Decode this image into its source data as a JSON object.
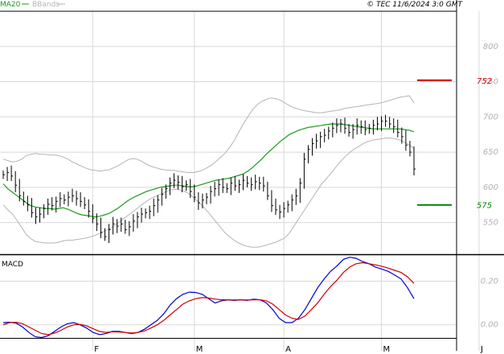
{
  "header": {
    "legend": [
      {
        "name": "MA20",
        "color": "#1a9a1a"
      },
      {
        "name": "BBands",
        "color": "#b4b4b4"
      }
    ],
    "copyright": "© TEC 11/6/2024 3:0 GMT"
  },
  "chart_data": [
    {
      "type": "line",
      "panel": "price",
      "ylim": [
        505,
        850
      ],
      "y_ticks": [
        {
          "label": "800",
          "value": 800
        },
        {
          "label": "750",
          "value": 750
        },
        {
          "label": "700",
          "value": 700
        },
        {
          "label": "650",
          "value": 650
        },
        {
          "label": "600",
          "value": 600
        },
        {
          "label": "550",
          "value": 550
        }
      ],
      "month_markers": [
        {
          "label": "F",
          "index": 22
        },
        {
          "label": "M",
          "index": 47
        },
        {
          "label": "A",
          "index": 69
        },
        {
          "label": "M",
          "index": 93
        },
        {
          "label": "J",
          "index": 117
        }
      ],
      "levels": [
        {
          "label": "752",
          "value": 752,
          "color": "#cc0000"
        },
        {
          "label": "575",
          "value": 575,
          "color": "#008000"
        }
      ],
      "colors": {
        "bars": "#000000",
        "ma20": "#1a9a1a",
        "bbands": "#b4b4b4",
        "grid": "#d8d8d8",
        "tick_text": "#b0b0b0"
      },
      "close": [
        618,
        621,
        616,
        603,
        588,
        580,
        575,
        564,
        558,
        562,
        570,
        576,
        574,
        580,
        584,
        582,
        586,
        588,
        584,
        580,
        575,
        566,
        556,
        548,
        536,
        530,
        540,
        548,
        545,
        548,
        540,
        544,
        552,
        558,
        562,
        564,
        566,
        574,
        582,
        590,
        598,
        606,
        610,
        607,
        601,
        604,
        594,
        586,
        578,
        582,
        586,
        594,
        598,
        604,
        600,
        598,
        606,
        602,
        604,
        610,
        606,
        604,
        608,
        606,
        602,
        588,
        574,
        568,
        565,
        570,
        575,
        582,
        588,
        606,
        640,
        654,
        662,
        666,
        672,
        674,
        680,
        684,
        688,
        690,
        684,
        678,
        682,
        688,
        686,
        682,
        684,
        688,
        690,
        694,
        694,
        690,
        686,
        678,
        672,
        660,
        650,
        626
      ],
      "ma20": [
        605,
        598,
        593,
        588,
        583,
        578,
        574,
        572,
        571,
        570,
        570,
        569,
        570,
        571,
        569,
        566,
        563,
        561,
        560,
        559,
        558,
        559,
        561,
        563,
        567,
        571,
        576,
        581,
        585,
        588,
        591,
        594,
        596,
        598,
        600,
        601,
        602,
        603,
        603,
        602,
        601,
        601,
        602,
        604,
        606,
        608,
        610,
        611,
        612,
        613,
        615,
        617,
        619,
        623,
        628,
        634,
        640,
        647,
        653,
        659,
        665,
        670,
        675,
        678,
        681,
        683,
        685,
        686,
        687,
        688,
        689,
        690,
        690,
        690,
        689,
        688,
        687,
        686,
        685,
        684,
        683,
        683,
        683,
        683,
        683,
        683,
        683,
        682,
        681,
        679
      ],
      "bb_upper": [
        640,
        638,
        636,
        637,
        640,
        645,
        647,
        648,
        647,
        647,
        646,
        646,
        645,
        643,
        640,
        636,
        633,
        630,
        627,
        625,
        624,
        623,
        624,
        625,
        628,
        631,
        635,
        639,
        641,
        640,
        637,
        633,
        630,
        628,
        626,
        625,
        624,
        624,
        623,
        622,
        621,
        621,
        622,
        624,
        627,
        631,
        636,
        642,
        648,
        656,
        666,
        678,
        690,
        700,
        710,
        717,
        722,
        725,
        727,
        726,
        724,
        720,
        716,
        713,
        711,
        709,
        708,
        707,
        706,
        706,
        707,
        708,
        709,
        710,
        712,
        713,
        714,
        715,
        716,
        717,
        718,
        719,
        720,
        722,
        724,
        726,
        728,
        729,
        730,
        720
      ],
      "bb_lower": [
        575,
        568,
        562,
        553,
        543,
        533,
        527,
        523,
        522,
        521,
        521,
        521,
        522,
        524,
        525,
        525,
        526,
        527,
        528,
        530,
        532,
        535,
        538,
        541,
        545,
        550,
        555,
        560,
        565,
        570,
        575,
        580,
        584,
        587,
        590,
        593,
        596,
        597,
        597,
        595,
        592,
        587,
        581,
        575,
        568,
        560,
        552,
        544,
        536,
        530,
        525,
        521,
        518,
        516,
        515,
        515,
        516,
        518,
        520,
        522,
        525,
        528,
        535,
        545,
        555,
        565,
        575,
        585,
        595,
        605,
        612,
        620,
        628,
        636,
        643,
        649,
        654,
        658,
        662,
        665,
        667,
        668,
        669,
        670,
        670,
        669,
        667,
        664,
        660,
        655
      ]
    },
    {
      "type": "line",
      "panel": "macd",
      "title": "MACD",
      "ylim": [
        -0.06,
        0.32
      ],
      "y_ticks": [
        {
          "label": "0.20",
          "value": 0.2
        },
        {
          "label": "0.00",
          "value": 0.0
        }
      ],
      "series": [
        {
          "color": "#0000cc",
          "values": [
            0.01,
            0.012,
            0.008,
            -0.01,
            -0.035,
            -0.055,
            -0.058,
            -0.05,
            -0.03,
            -0.01,
            0.005,
            0.01,
            0.0,
            -0.015,
            -0.035,
            -0.045,
            -0.04,
            -0.03,
            -0.03,
            -0.035,
            -0.04,
            -0.035,
            -0.02,
            0.0,
            0.02,
            0.05,
            0.09,
            0.12,
            0.14,
            0.15,
            0.148,
            0.14,
            0.12,
            0.1,
            0.11,
            0.115,
            0.112,
            0.115,
            0.112,
            0.118,
            0.115,
            0.1,
            0.07,
            0.03,
            0.01,
            0.01,
            0.03,
            0.07,
            0.12,
            0.17,
            0.21,
            0.245,
            0.27,
            0.3,
            0.31,
            0.305,
            0.29,
            0.28,
            0.265,
            0.255,
            0.245,
            0.228,
            0.21,
            0.17,
            0.12
          ]
        },
        {
          "color": "#cc0000",
          "values": [
            0.0,
            0.01,
            0.012,
            0.005,
            -0.01,
            -0.025,
            -0.04,
            -0.045,
            -0.038,
            -0.025,
            -0.01,
            0.0,
            0.002,
            -0.005,
            -0.018,
            -0.03,
            -0.035,
            -0.032,
            -0.033,
            -0.035,
            -0.038,
            -0.035,
            -0.028,
            -0.015,
            0.0,
            0.02,
            0.045,
            0.07,
            0.095,
            0.11,
            0.12,
            0.125,
            0.123,
            0.118,
            0.115,
            0.115,
            0.114,
            0.115,
            0.114,
            0.115,
            0.115,
            0.11,
            0.095,
            0.07,
            0.045,
            0.03,
            0.025,
            0.04,
            0.07,
            0.1,
            0.14,
            0.175,
            0.205,
            0.24,
            0.265,
            0.28,
            0.285,
            0.28,
            0.275,
            0.268,
            0.26,
            0.25,
            0.24,
            0.22,
            0.19
          ]
        }
      ]
    }
  ]
}
